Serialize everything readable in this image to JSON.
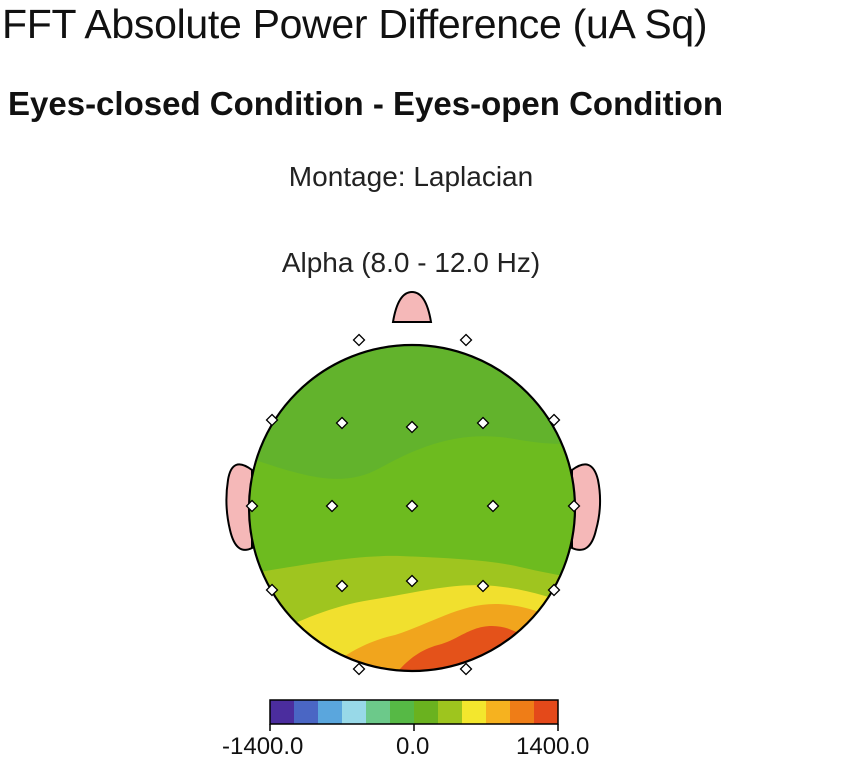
{
  "figure": {
    "title": "FFT Absolute Power Difference  (uA Sq)",
    "subtitle": "Eyes-closed Condition - Eyes-open Condition",
    "montage": "Montage:  Laplacian",
    "band": "Alpha (8.0 - 12.0 Hz)"
  },
  "colorbar": {
    "min_label": "-1400.0",
    "mid_label": "0.0",
    "max_label": "1400.0",
    "range": [
      -1400,
      1400
    ],
    "colors": [
      "#4b2d9e",
      "#4a66c4",
      "#5aa6dd",
      "#98d9e8",
      "#6cc98a",
      "#56b945",
      "#6ab21f",
      "#9ec51e",
      "#f3e72d",
      "#f6b21f",
      "#ef7d17",
      "#e4491a"
    ]
  },
  "map_colors": {
    "head_outline": "#000000",
    "nose_ear": "#f5b8b8",
    "zone_green_dark": "#62b32c",
    "zone_green": "#6dbb1f",
    "zone_lime": "#9fc51f",
    "zone_yellow": "#f1e02e",
    "zone_orange": "#f1a51d",
    "zone_red": "#e4521a"
  }
}
